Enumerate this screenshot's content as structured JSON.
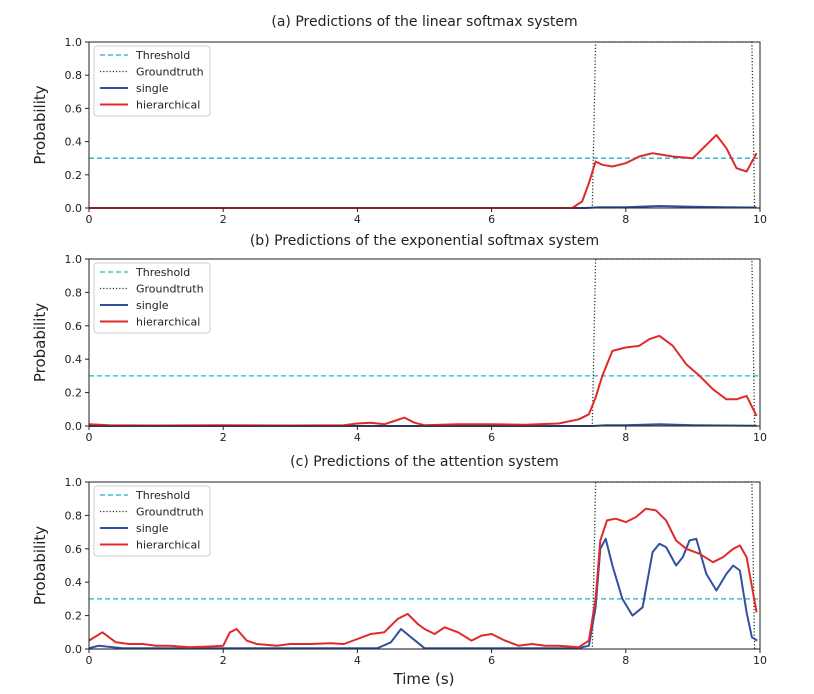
{
  "figure": {
    "xlabel": "Time (s)"
  },
  "colors": {
    "threshold": "#22b2c8",
    "groundtruth": "#1f3b2a",
    "single": "#3350a0",
    "hierarchical": "#e02a2a"
  },
  "chart_data": [
    {
      "type": "line",
      "title": "(a) Predictions of the linear softmax system",
      "xlabel": "",
      "ylabel": "Probability",
      "xlim": [
        0,
        10
      ],
      "ylim": [
        0,
        1
      ],
      "xticks": [
        0,
        2,
        4,
        6,
        8,
        10
      ],
      "yticks": [
        "0.0",
        "0.2",
        "0.4",
        "0.6",
        "0.8",
        "1.0"
      ],
      "legend_position": "top-left",
      "series": [
        {
          "name": "Threshold",
          "style": "dashed",
          "x": [
            0,
            10
          ],
          "y": [
            0.3,
            0.3
          ]
        },
        {
          "name": "Groundtruth",
          "style": "dotted",
          "x": [
            0,
            7.5,
            7.55,
            9.88,
            9.92,
            10
          ],
          "y": [
            0,
            0,
            1,
            1,
            0,
            0
          ]
        },
        {
          "name": "single",
          "style": "solid",
          "x": [
            0,
            7.4,
            7.6,
            8.0,
            8.5,
            9.0,
            9.5,
            9.95
          ],
          "y": [
            0,
            0,
            0.005,
            0.005,
            0.012,
            0.007,
            0.005,
            0.003
          ]
        },
        {
          "name": "hierarchical",
          "style": "solid",
          "x": [
            0,
            7.2,
            7.35,
            7.45,
            7.55,
            7.65,
            7.8,
            8.0,
            8.2,
            8.4,
            8.7,
            9.0,
            9.2,
            9.35,
            9.5,
            9.65,
            9.8,
            9.95
          ],
          "y": [
            0,
            0,
            0.04,
            0.15,
            0.28,
            0.26,
            0.25,
            0.27,
            0.31,
            0.33,
            0.31,
            0.3,
            0.38,
            0.44,
            0.36,
            0.24,
            0.22,
            0.33
          ]
        }
      ]
    },
    {
      "type": "line",
      "title": "(b) Predictions of the exponential softmax system",
      "xlabel": "",
      "ylabel": "Probability",
      "xlim": [
        0,
        10
      ],
      "ylim": [
        0,
        1
      ],
      "xticks": [
        0,
        2,
        4,
        6,
        8,
        10
      ],
      "yticks": [
        "0.0",
        "0.2",
        "0.4",
        "0.6",
        "0.8",
        "1.0"
      ],
      "legend_position": "top-left",
      "series": [
        {
          "name": "Threshold",
          "style": "dashed",
          "x": [
            0,
            10
          ],
          "y": [
            0.3,
            0.3
          ]
        },
        {
          "name": "Groundtruth",
          "style": "dotted",
          "x": [
            0,
            7.5,
            7.55,
            9.88,
            9.92,
            10
          ],
          "y": [
            0,
            0,
            1,
            1,
            0,
            0
          ]
        },
        {
          "name": "single",
          "style": "solid",
          "x": [
            0,
            7.5,
            7.7,
            8.0,
            8.5,
            9.0,
            9.5,
            9.95
          ],
          "y": [
            0,
            0,
            0.005,
            0.005,
            0.01,
            0.005,
            0.003,
            0.002
          ]
        },
        {
          "name": "hierarchical",
          "style": "solid",
          "x": [
            0,
            0.3,
            1.0,
            2.0,
            3.0,
            3.8,
            4.0,
            4.2,
            4.4,
            4.55,
            4.7,
            4.85,
            5.0,
            5.5,
            6.0,
            6.5,
            7.0,
            7.3,
            7.45,
            7.55,
            7.65,
            7.8,
            8.0,
            8.2,
            8.35,
            8.5,
            8.7,
            8.9,
            9.1,
            9.3,
            9.5,
            9.65,
            9.8,
            9.95
          ],
          "y": [
            0.01,
            0.005,
            0.003,
            0.005,
            0.003,
            0.005,
            0.015,
            0.02,
            0.01,
            0.03,
            0.05,
            0.02,
            0.005,
            0.01,
            0.01,
            0.008,
            0.015,
            0.04,
            0.07,
            0.17,
            0.3,
            0.45,
            0.47,
            0.48,
            0.52,
            0.54,
            0.48,
            0.37,
            0.3,
            0.22,
            0.16,
            0.16,
            0.18,
            0.06
          ]
        }
      ]
    },
    {
      "type": "line",
      "title": "(c) Predictions of the attention system",
      "xlabel": "Time (s)",
      "ylabel": "Probability",
      "xlim": [
        0,
        10
      ],
      "ylim": [
        0,
        1
      ],
      "xticks": [
        0,
        2,
        4,
        6,
        8,
        10
      ],
      "yticks": [
        "0.0",
        "0.2",
        "0.4",
        "0.6",
        "0.8",
        "1.0"
      ],
      "legend_position": "top-left",
      "series": [
        {
          "name": "Threshold",
          "style": "dashed",
          "x": [
            0,
            10
          ],
          "y": [
            0.3,
            0.3
          ]
        },
        {
          "name": "Groundtruth",
          "style": "dotted",
          "x": [
            0,
            7.5,
            7.55,
            9.88,
            9.92,
            10
          ],
          "y": [
            0,
            0,
            1,
            1,
            0,
            0
          ]
        },
        {
          "name": "single",
          "style": "solid",
          "x": [
            0,
            0.15,
            0.5,
            1.5,
            2.5,
            3.5,
            4.3,
            4.5,
            4.65,
            4.8,
            5.0,
            5.5,
            6.5,
            7.3,
            7.45,
            7.55,
            7.62,
            7.7,
            7.8,
            7.95,
            8.1,
            8.25,
            8.4,
            8.5,
            8.6,
            8.75,
            8.85,
            8.95,
            9.05,
            9.2,
            9.35,
            9.5,
            9.6,
            9.7,
            9.8,
            9.88,
            9.96
          ],
          "y": [
            0.005,
            0.02,
            0.005,
            0.005,
            0.005,
            0.005,
            0.005,
            0.04,
            0.12,
            0.07,
            0.005,
            0.005,
            0.005,
            0.005,
            0.02,
            0.25,
            0.6,
            0.66,
            0.5,
            0.3,
            0.2,
            0.25,
            0.58,
            0.63,
            0.61,
            0.5,
            0.55,
            0.65,
            0.66,
            0.45,
            0.35,
            0.45,
            0.5,
            0.47,
            0.22,
            0.07,
            0.05
          ]
        },
        {
          "name": "hierarchical",
          "style": "solid",
          "x": [
            0,
            0.2,
            0.4,
            0.6,
            0.8,
            1.0,
            1.2,
            1.5,
            1.8,
            2.0,
            2.1,
            2.2,
            2.35,
            2.5,
            2.8,
            3.0,
            3.3,
            3.6,
            3.8,
            4.0,
            4.2,
            4.4,
            4.6,
            4.75,
            4.9,
            5.0,
            5.15,
            5.3,
            5.5,
            5.7,
            5.85,
            6.0,
            6.2,
            6.4,
            6.6,
            6.8,
            7.0,
            7.3,
            7.45,
            7.55,
            7.62,
            7.72,
            7.85,
            8.0,
            8.15,
            8.3,
            8.45,
            8.6,
            8.75,
            8.9,
            9.1,
            9.3,
            9.45,
            9.6,
            9.7,
            9.8,
            9.95
          ],
          "y": [
            0.05,
            0.1,
            0.04,
            0.03,
            0.03,
            0.02,
            0.02,
            0.01,
            0.015,
            0.02,
            0.1,
            0.12,
            0.05,
            0.03,
            0.02,
            0.03,
            0.03,
            0.035,
            0.03,
            0.06,
            0.09,
            0.1,
            0.18,
            0.21,
            0.15,
            0.12,
            0.09,
            0.13,
            0.1,
            0.05,
            0.08,
            0.09,
            0.05,
            0.02,
            0.03,
            0.02,
            0.02,
            0.01,
            0.05,
            0.3,
            0.65,
            0.77,
            0.78,
            0.76,
            0.79,
            0.84,
            0.83,
            0.77,
            0.65,
            0.6,
            0.57,
            0.52,
            0.55,
            0.6,
            0.62,
            0.55,
            0.22
          ]
        }
      ]
    }
  ]
}
